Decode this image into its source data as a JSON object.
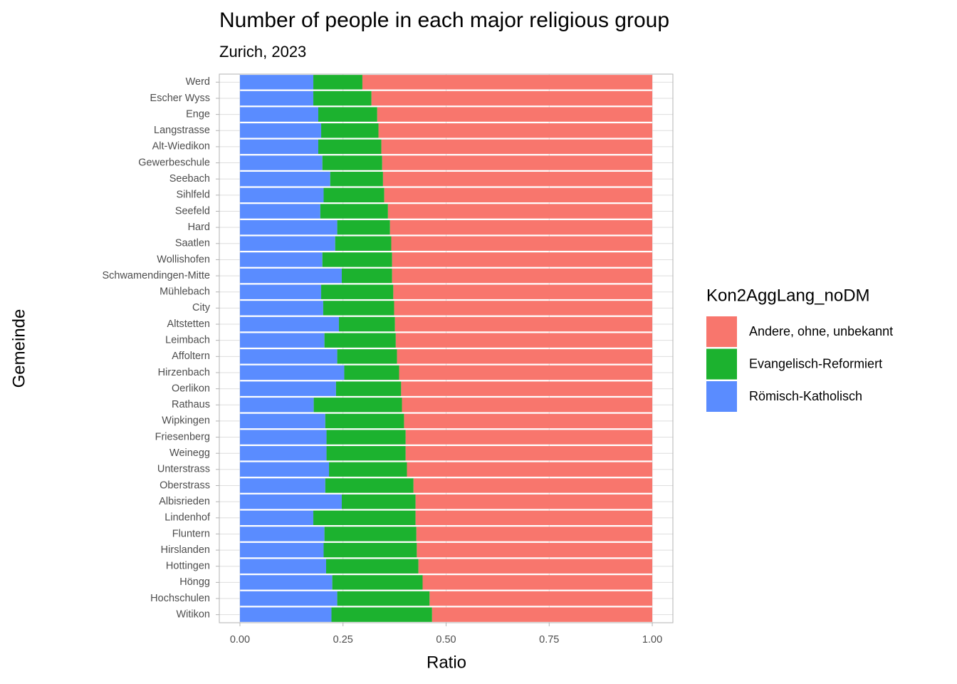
{
  "chart_data": {
    "type": "stacked-barh",
    "title": "Number of people in each major religious group",
    "subtitle": "Zurich, 2023",
    "x_label": "Ratio",
    "y_label": "Gemeinde",
    "legend_title": "Kon2AggLang_noDM",
    "legend_position": "right",
    "grid": true,
    "categories": [
      "Werd",
      "Escher Wyss",
      "Enge",
      "Langstrasse",
      "Alt-Wiedikon",
      "Gewerbeschule",
      "Seebach",
      "Sihlfeld",
      "Seefeld",
      "Hard",
      "Saatlen",
      "Wollishofen",
      "Schwamendingen-Mitte",
      "Mühlebach",
      "City",
      "Altstetten",
      "Leimbach",
      "Affoltern",
      "Hirzenbach",
      "Oerlikon",
      "Rathaus",
      "Wipkingen",
      "Friesenberg",
      "Weinegg",
      "Unterstrass",
      "Oberstrass",
      "Albisrieden",
      "Lindenhof",
      "Fluntern",
      "Hirslanden",
      "Hottingen",
      "Höngg",
      "Hochschulen",
      "Witikon"
    ],
    "series": [
      {
        "name": "Andere, ohne, unbekannt",
        "color": "#f8766d",
        "values": [
          0.703,
          0.681,
          0.667,
          0.664,
          0.657,
          0.655,
          0.653,
          0.65,
          0.641,
          0.636,
          0.633,
          0.631,
          0.631,
          0.628,
          0.626,
          0.624,
          0.622,
          0.619,
          0.614,
          0.609,
          0.607,
          0.602,
          0.598,
          0.598,
          0.595,
          0.579,
          0.574,
          0.574,
          0.572,
          0.571,
          0.567,
          0.557,
          0.54,
          0.534
        ]
      },
      {
        "name": "Evangelisch-Reformiert",
        "color": "#1cb22f",
        "values": [
          0.119,
          0.141,
          0.143,
          0.139,
          0.153,
          0.145,
          0.128,
          0.147,
          0.164,
          0.128,
          0.136,
          0.169,
          0.122,
          0.175,
          0.172,
          0.136,
          0.173,
          0.145,
          0.133,
          0.158,
          0.214,
          0.191,
          0.192,
          0.192,
          0.189,
          0.214,
          0.179,
          0.248,
          0.223,
          0.226,
          0.224,
          0.219,
          0.224,
          0.244
        ]
      },
      {
        "name": "Römisch-Katholisch",
        "color": "#5a8cff",
        "values": [
          0.178,
          0.178,
          0.19,
          0.197,
          0.19,
          0.2,
          0.219,
          0.203,
          0.195,
          0.236,
          0.231,
          0.2,
          0.247,
          0.197,
          0.202,
          0.24,
          0.205,
          0.236,
          0.253,
          0.233,
          0.179,
          0.207,
          0.21,
          0.21,
          0.216,
          0.207,
          0.247,
          0.178,
          0.205,
          0.203,
          0.209,
          0.224,
          0.236,
          0.222
        ]
      }
    ],
    "xlim": [
      -0.05,
      1.05
    ],
    "xticks": [
      {
        "value": 0,
        "label": "0.00"
      },
      {
        "value": 0.25,
        "label": "0.25"
      },
      {
        "value": 0.5,
        "label": "0.50"
      },
      {
        "value": 0.75,
        "label": "0.75"
      },
      {
        "value": 1,
        "label": "1.00"
      }
    ]
  }
}
